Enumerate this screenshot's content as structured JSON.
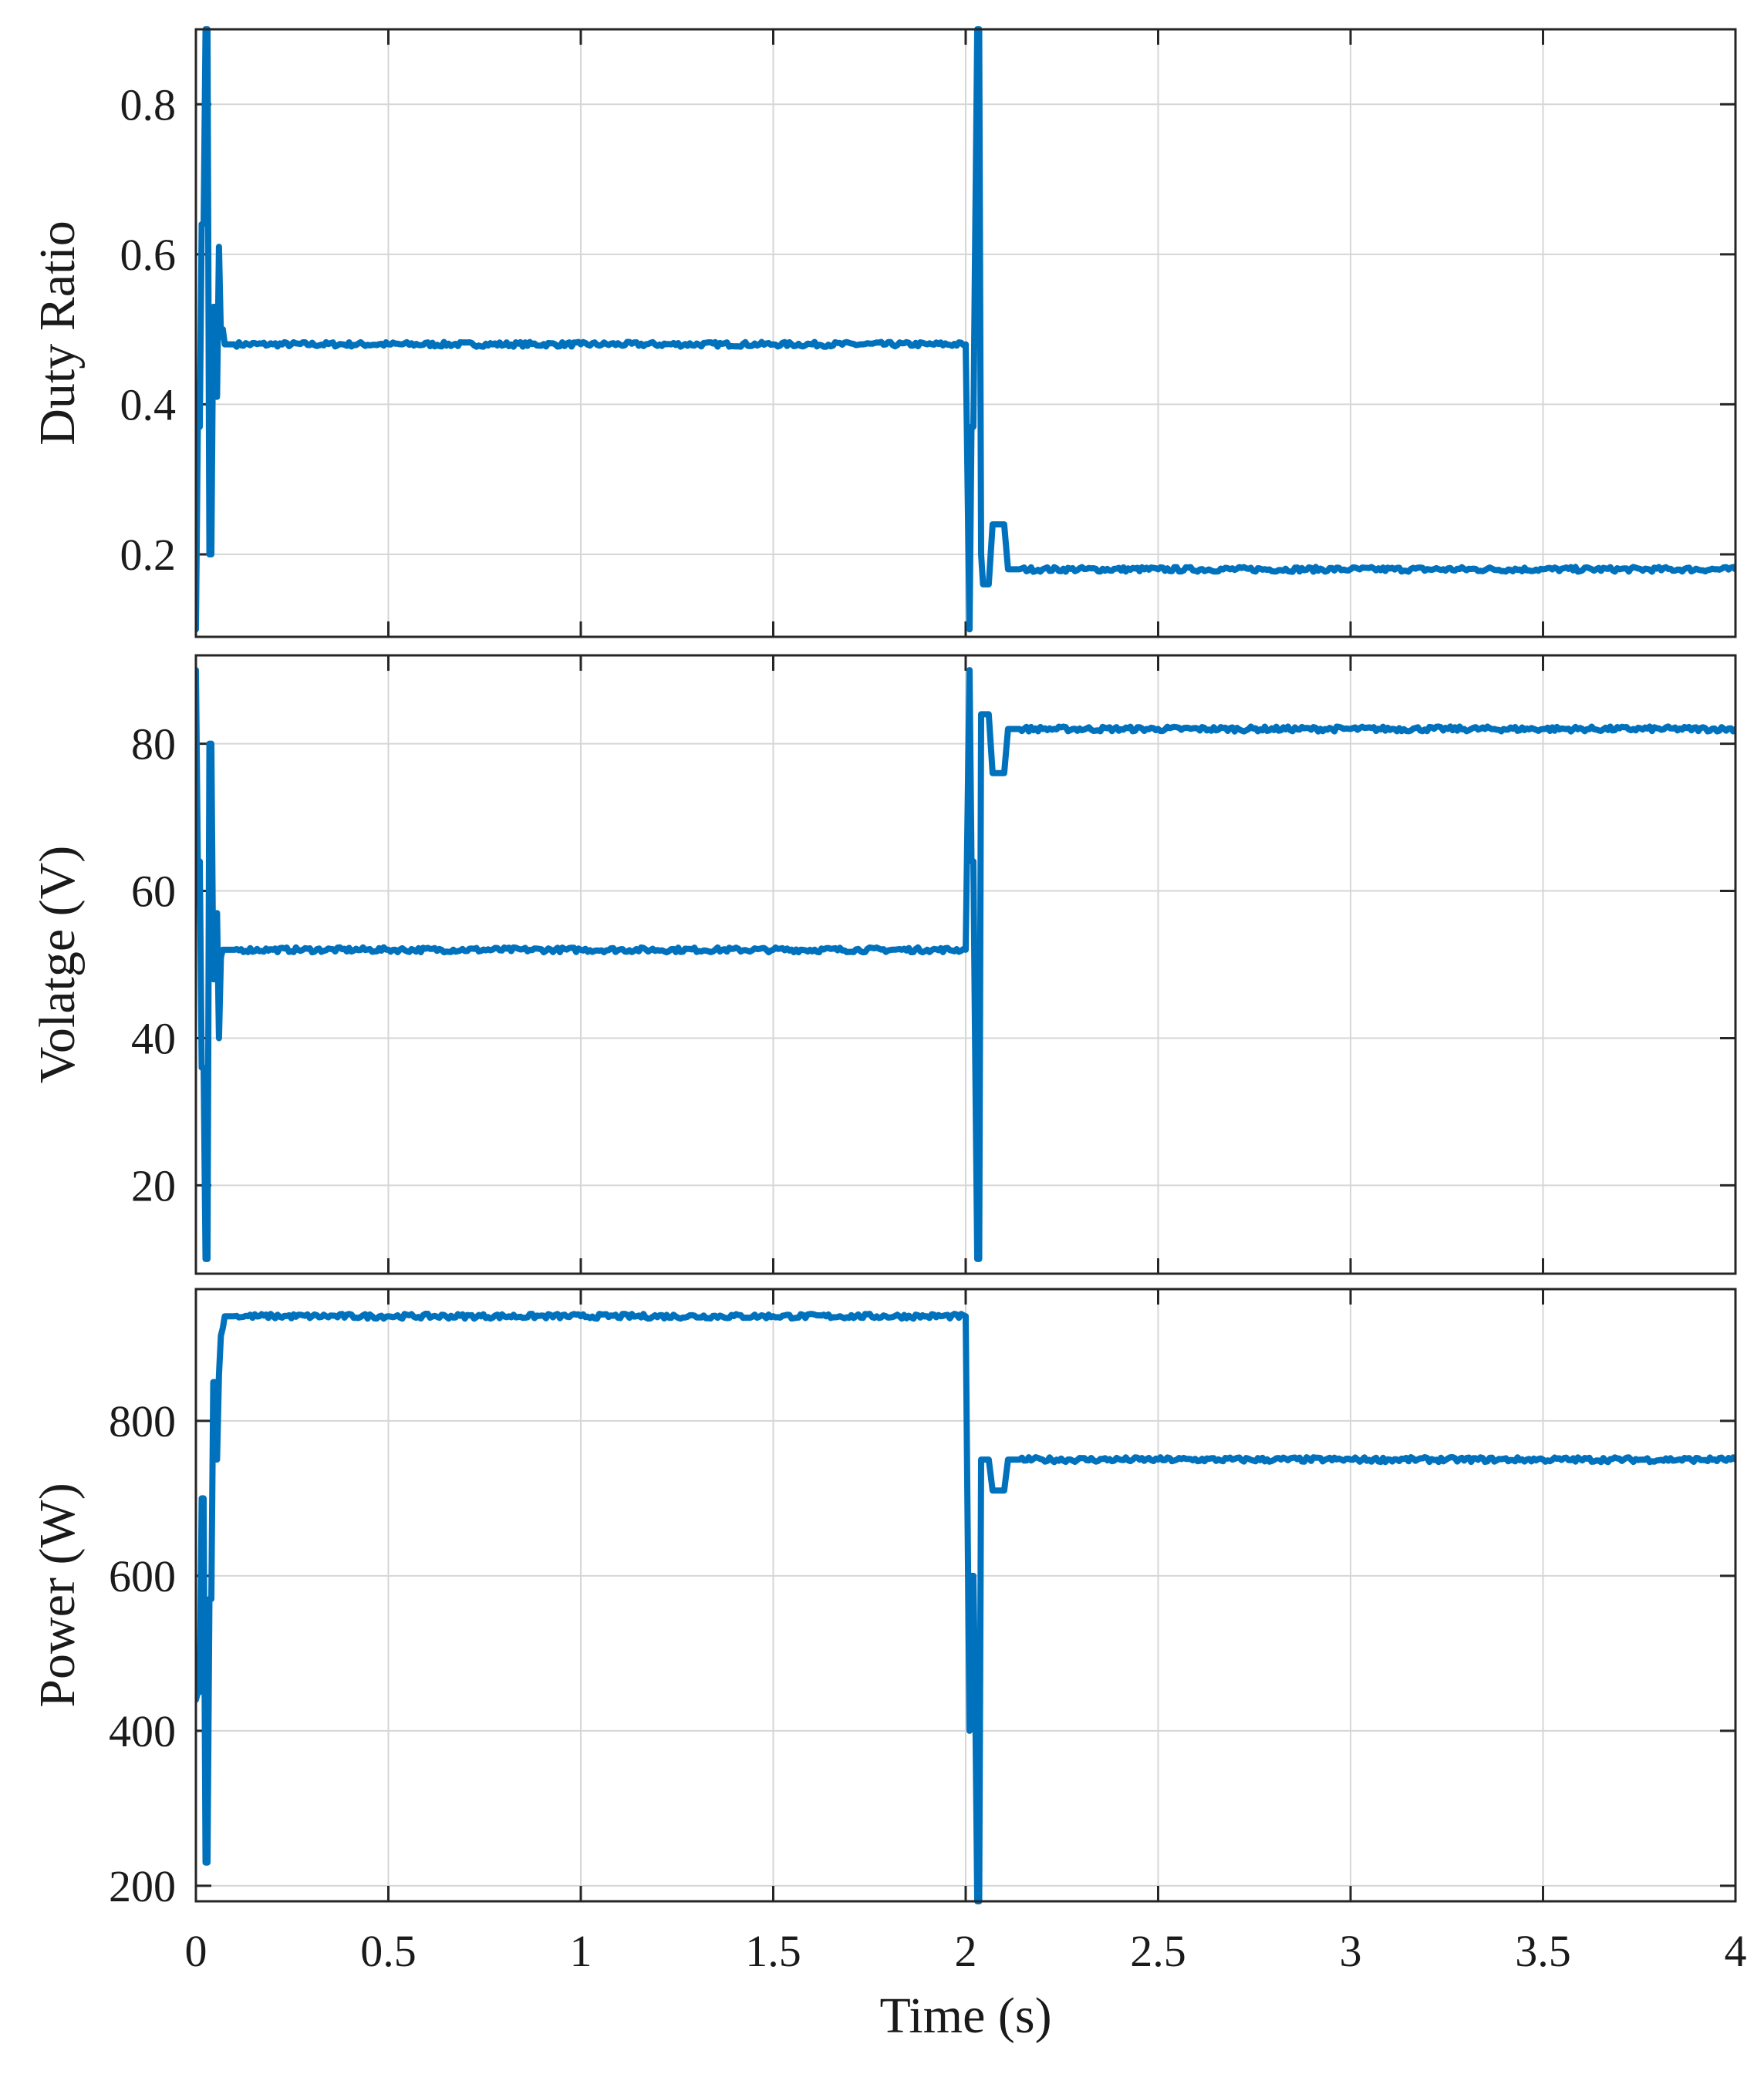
{
  "chart_data": [
    {
      "type": "line",
      "title": "",
      "xlabel": "",
      "ylabel": "Duty Ratio",
      "xlim": [
        0,
        4
      ],
      "ylim": [
        0.09,
        0.9
      ],
      "yticks": [
        0.2,
        0.4,
        0.6,
        0.8
      ],
      "ytick_labels": [
        "0.2",
        "0.4",
        "0.6",
        "0.8"
      ],
      "grid": true,
      "series": [
        {
          "color": "#0072bd",
          "x": [
            0,
            0.005,
            0.01,
            0.015,
            0.02,
            0.025,
            0.03,
            0.035,
            0.04,
            0.045,
            0.05,
            0.055,
            0.06,
            0.065,
            0.07,
            0.075,
            0.08,
            0.09,
            0.1,
            0.2,
            0.5,
            1.0,
            1.5,
            1.9,
            2.0,
            2.01,
            2.015,
            2.02,
            2.025,
            2.03,
            2.035,
            2.04,
            2.045,
            2.05,
            2.06,
            2.07,
            2.08,
            2.09,
            2.1,
            2.11,
            2.12,
            2.13,
            2.14,
            2.2,
            2.5,
            3.0,
            3.5,
            4.0
          ],
          "y": [
            0.1,
            0.37,
            0.37,
            0.64,
            0.64,
            0.9,
            0.9,
            0.2,
            0.2,
            0.53,
            0.53,
            0.41,
            0.61,
            0.49,
            0.5,
            0.48,
            0.48,
            0.48,
            0.48,
            0.48,
            0.48,
            0.48,
            0.48,
            0.48,
            0.48,
            0.1,
            0.37,
            0.37,
            0.64,
            0.9,
            0.9,
            0.2,
            0.16,
            0.16,
            0.16,
            0.24,
            0.24,
            0.24,
            0.24,
            0.18,
            0.18,
            0.18,
            0.18,
            0.18,
            0.18,
            0.18,
            0.18,
            0.18
          ]
        }
      ]
    },
    {
      "type": "line",
      "title": "",
      "xlabel": "",
      "ylabel": "Volatge (V)",
      "xlim": [
        0,
        4
      ],
      "ylim": [
        8,
        92
      ],
      "yticks": [
        20,
        40,
        60,
        80
      ],
      "ytick_labels": [
        "20",
        "40",
        "60",
        "80"
      ],
      "grid": true,
      "series": [
        {
          "color": "#0072bd",
          "x": [
            0,
            0.005,
            0.01,
            0.015,
            0.02,
            0.025,
            0.03,
            0.035,
            0.04,
            0.045,
            0.05,
            0.055,
            0.06,
            0.065,
            0.07,
            0.075,
            0.08,
            0.09,
            0.1,
            0.2,
            0.5,
            1.0,
            1.5,
            1.9,
            2.0,
            2.01,
            2.015,
            2.02,
            2.025,
            2.03,
            2.035,
            2.04,
            2.045,
            2.05,
            2.06,
            2.07,
            2.08,
            2.09,
            2.1,
            2.11,
            2.12,
            2.13,
            2.14,
            2.2,
            2.5,
            3.0,
            3.5,
            4.0
          ],
          "y": [
            90,
            64,
            64,
            36,
            36,
            10,
            10,
            80,
            80,
            48,
            48,
            57,
            40,
            51,
            52,
            52,
            52,
            52,
            52,
            52,
            52,
            52,
            52,
            52,
            52,
            90,
            64,
            64,
            36,
            10,
            10,
            84,
            84,
            84,
            84,
            76,
            76,
            76,
            76,
            82,
            82,
            82,
            82,
            82,
            82,
            82,
            82,
            82
          ]
        }
      ]
    },
    {
      "type": "line",
      "title": "",
      "xlabel": "Time (s)",
      "ylabel": "Power (W)",
      "xlim": [
        0,
        4
      ],
      "ylim": [
        180,
        970
      ],
      "yticks": [
        200,
        400,
        600,
        800
      ],
      "ytick_labels": [
        "200",
        "400",
        "600",
        "800"
      ],
      "xticks": [
        0,
        0.5,
        1,
        1.5,
        2,
        2.5,
        3,
        3.5,
        4
      ],
      "xtick_labels": [
        "0",
        "0.5",
        "1",
        "1.5",
        "2",
        "2.5",
        "3",
        "3.5",
        "4"
      ],
      "grid": true,
      "series": [
        {
          "color": "#0072bd",
          "x": [
            0,
            0.005,
            0.01,
            0.015,
            0.02,
            0.025,
            0.03,
            0.035,
            0.04,
            0.045,
            0.05,
            0.055,
            0.06,
            0.065,
            0.07,
            0.075,
            0.08,
            0.09,
            0.1,
            0.2,
            0.5,
            1.0,
            1.5,
            1.9,
            2.0,
            2.01,
            2.015,
            2.02,
            2.025,
            2.03,
            2.035,
            2.04,
            2.045,
            2.05,
            2.06,
            2.07,
            2.08,
            2.09,
            2.1,
            2.11,
            2.12,
            2.13,
            2.14,
            2.2,
            2.5,
            3.0,
            3.5,
            4.0
          ],
          "y": [
            440,
            450,
            450,
            700,
            700,
            230,
            230,
            570,
            570,
            850,
            850,
            750,
            860,
            910,
            920,
            935,
            935,
            935,
            935,
            935,
            935,
            935,
            935,
            935,
            935,
            400,
            600,
            600,
            430,
            180,
            180,
            750,
            750,
            750,
            750,
            710,
            710,
            710,
            710,
            750,
            750,
            750,
            750,
            750,
            750,
            750,
            750,
            750
          ]
        }
      ]
    }
  ]
}
